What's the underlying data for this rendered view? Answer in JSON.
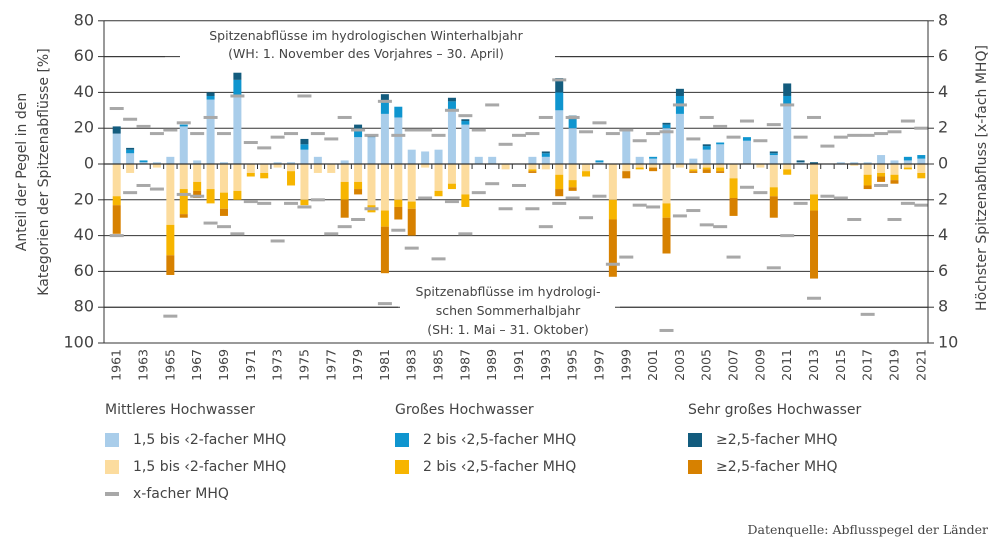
{
  "chart_data": {
    "type": "bar",
    "subtype": "diverging-stacked-bar-with-markers",
    "ylabel_left": "Anteil der Pegel in den Kategorien der Spitzenabflüsse [%]",
    "ylabel_left_lines": [
      "Anteil der Pegel in den",
      "Kategorien der Spitzenabflüsse [%]"
    ],
    "ylabel_right": "Höchster Spitzenabfluss  [x-fach MHQ]",
    "left_axis": {
      "ticks_up": [
        0,
        20,
        40,
        60,
        80
      ],
      "ticks_down": [
        20,
        40,
        60,
        80,
        100
      ],
      "range": [
        -100,
        80
      ]
    },
    "right_axis": {
      "ticks_up": [
        0,
        2,
        4,
        6,
        8
      ],
      "ticks_down": [
        2,
        4,
        6,
        8,
        10
      ],
      "range": [
        -10,
        8
      ]
    },
    "annotations": {
      "winter": [
        "Spitzenabflüsse im hydrologischen Winterhalbjahr",
        "(WH: 1. November des Vorjahres – 30. April)"
      ],
      "summer": [
        "Spitzenabflüsse im hydrologi-",
        "schen Sommerhalbjahr",
        "(SH: 1. Mai – 31. Oktober)"
      ]
    },
    "x": [
      1961,
      1962,
      1963,
      1964,
      1965,
      1966,
      1967,
      1968,
      1969,
      1970,
      1971,
      1972,
      1973,
      1974,
      1975,
      1976,
      1977,
      1978,
      1979,
      1980,
      1981,
      1982,
      1983,
      1984,
      1985,
      1986,
      1987,
      1988,
      1989,
      1990,
      1991,
      1992,
      1993,
      1994,
      1995,
      1996,
      1997,
      1998,
      1999,
      2000,
      2001,
      2002,
      2003,
      2004,
      2005,
      2006,
      2007,
      2008,
      2009,
      2010,
      2011,
      2012,
      2013,
      2014,
      2015,
      2016,
      2017,
      2018,
      2019,
      2020,
      2021
    ],
    "x_tick_labels": [
      "1961",
      "1963",
      "1965",
      "1967",
      "1969",
      "1971",
      "1973",
      "1975",
      "1977",
      "1979",
      "1981",
      "1983",
      "1985",
      "1987",
      "1989",
      "1991",
      "1993",
      "1995",
      "1997",
      "1999",
      "2001",
      "2003",
      "2005",
      "2007",
      "2009",
      "2011",
      "2013",
      "2015",
      "2017",
      "2019",
      "2021"
    ],
    "colors": {
      "winter_mittel": "#a9cdea",
      "winter_gross": "#0f95cf",
      "winter_sehr": "#135c7e",
      "summer_mittel": "#fcdc9e",
      "summer_gross": "#f7b500",
      "summer_sehr": "#d78100",
      "marker": "#a8a8a8",
      "grid": "#333333"
    },
    "series": [
      {
        "name": "WH 1,5 bis <2-facher MHQ",
        "season": "winter",
        "values": [
          17,
          6,
          1,
          1,
          4,
          21,
          2,
          36,
          1,
          38,
          0,
          0,
          1,
          1,
          8,
          4,
          0,
          2,
          15,
          15,
          28,
          26,
          8,
          7,
          8,
          30,
          22,
          4,
          4,
          0,
          0,
          4,
          4,
          30,
          20,
          0,
          1,
          0,
          19,
          4,
          3,
          20,
          28,
          3,
          8,
          11,
          0,
          13,
          0,
          5,
          33,
          1,
          0,
          0,
          1,
          1,
          1,
          5,
          2,
          2,
          3
        ]
      },
      {
        "name": "WH 2 bis <2,5-facher MHQ",
        "season": "winter",
        "values": [
          0,
          2,
          1,
          0,
          0,
          1,
          0,
          2,
          0,
          9,
          0,
          0,
          0,
          0,
          3,
          0,
          0,
          0,
          5,
          0,
          7,
          6,
          0,
          0,
          0,
          5,
          2,
          0,
          0,
          0,
          0,
          0,
          2,
          10,
          5,
          0,
          1,
          0,
          0,
          0,
          1,
          2,
          10,
          0,
          2,
          1,
          0,
          2,
          0,
          1,
          5,
          0,
          0,
          0,
          0,
          0,
          0,
          0,
          0,
          2,
          2
        ]
      },
      {
        "name": "WH ≥2,5-facher MHQ",
        "season": "winter",
        "values": [
          4,
          1,
          0,
          0,
          0,
          0,
          0,
          2,
          0,
          4,
          0,
          0,
          0,
          0,
          3,
          0,
          0,
          0,
          2,
          1,
          4,
          0,
          0,
          0,
          0,
          2,
          1,
          0,
          0,
          0,
          0,
          0,
          1,
          8,
          2,
          0,
          0,
          0,
          0,
          0,
          0,
          1,
          4,
          0,
          1,
          0,
          0,
          0,
          0,
          1,
          7,
          1,
          1,
          0,
          0,
          0,
          0,
          0,
          0,
          0,
          0
        ]
      },
      {
        "name": "SH 1,5 bis <2-facher MHQ",
        "season": "summer",
        "values": [
          18,
          5,
          0,
          2,
          34,
          14,
          10,
          14,
          16,
          15,
          5,
          5,
          2,
          4,
          20,
          5,
          5,
          10,
          10,
          23,
          26,
          20,
          21,
          2,
          15,
          11,
          17,
          0,
          0,
          3,
          0,
          3,
          3,
          6,
          9,
          4,
          0,
          20,
          4,
          2,
          2,
          22,
          2,
          3,
          2,
          2,
          8,
          0,
          2,
          13,
          3,
          0,
          17,
          0,
          0,
          1,
          6,
          5,
          6,
          2,
          5
        ]
      },
      {
        "name": "SH 2 bis <2,5-facher MHQ",
        "season": "summer",
        "values": [
          5,
          0,
          0,
          0,
          17,
          14,
          5,
          8,
          9,
          5,
          2,
          3,
          0,
          8,
          3,
          0,
          0,
          10,
          4,
          4,
          9,
          4,
          4,
          0,
          3,
          3,
          7,
          0,
          0,
          0,
          0,
          1,
          0,
          8,
          4,
          3,
          0,
          11,
          0,
          1,
          0,
          8,
          0,
          1,
          1,
          2,
          11,
          0,
          0,
          5,
          3,
          0,
          9,
          0,
          0,
          0,
          6,
          2,
          3,
          1,
          3
        ]
      },
      {
        "name": "SH ≥2,5-facher MHQ",
        "season": "summer",
        "values": [
          16,
          0,
          0,
          0,
          11,
          2,
          4,
          0,
          4,
          0,
          0,
          0,
          0,
          0,
          0,
          0,
          0,
          10,
          3,
          0,
          26,
          7,
          15,
          0,
          0,
          0,
          0,
          0,
          0,
          0,
          0,
          1,
          0,
          4,
          2,
          0,
          0,
          32,
          4,
          0,
          2,
          20,
          0,
          1,
          2,
          1,
          10,
          0,
          0,
          12,
          0,
          0,
          38,
          0,
          0,
          0,
          2,
          3,
          2,
          0,
          0
        ]
      },
      {
        "name": "WH x-facher MHQ",
        "season": "winter",
        "marker": true,
        "values": [
          3.1,
          2.5,
          2.1,
          1.7,
          1.9,
          2.3,
          1.7,
          2.6,
          1.7,
          3.8,
          1.2,
          0.9,
          1.5,
          1.7,
          3.8,
          1.7,
          1.4,
          2.6,
          1.9,
          1.6,
          3.5,
          1.6,
          1.9,
          1.9,
          1.6,
          3.0,
          2.7,
          1.9,
          3.3,
          1.1,
          1.6,
          1.7,
          2.6,
          4.7,
          2.6,
          1.8,
          2.3,
          1.7,
          1.9,
          1.3,
          1.7,
          1.8,
          3.3,
          1.4,
          2.6,
          2.1,
          1.5,
          2.4,
          1.3,
          2.2,
          3.3,
          1.5,
          2.6,
          1.0,
          1.5,
          1.6,
          1.6,
          1.7,
          1.8,
          2.4,
          2.0
        ]
      },
      {
        "name": "SH x-facher MHQ",
        "season": "summer",
        "marker": true,
        "values": [
          4.0,
          1.6,
          1.2,
          1.4,
          8.5,
          1.7,
          1.8,
          3.3,
          3.5,
          3.9,
          2.1,
          2.2,
          4.3,
          2.2,
          2.4,
          2.0,
          3.9,
          3.5,
          3.1,
          2.5,
          7.8,
          3.7,
          4.7,
          1.9,
          5.3,
          2.1,
          3.9,
          1.6,
          1.1,
          2.5,
          1.2,
          2.5,
          3.5,
          2.2,
          1.9,
          3.0,
          1.8,
          5.6,
          5.2,
          2.3,
          2.4,
          9.3,
          2.9,
          2.6,
          3.4,
          3.5,
          5.2,
          1.3,
          1.6,
          5.8,
          4.0,
          2.2,
          7.5,
          1.8,
          1.9,
          3.1,
          8.4,
          1.2,
          3.1,
          2.2,
          2.3
        ]
      }
    ],
    "legend": {
      "groups": [
        {
          "title": "Mittleres Hochwasser",
          "items": [
            {
              "label": "1,5 bis ‹2-facher MHQ",
              "color_key": "winter_mittel"
            },
            {
              "label": "1,5 bis ‹2-facher MHQ",
              "color_key": "summer_mittel"
            },
            {
              "label": "x-facher MHQ",
              "color_key": "marker",
              "kind": "dash"
            }
          ]
        },
        {
          "title": "Großes Hochwasser",
          "items": [
            {
              "label": "2 bis ‹2,5-facher MHQ",
              "color_key": "winter_gross"
            },
            {
              "label": "2 bis ‹2,5-facher MHQ",
              "color_key": "summer_gross"
            }
          ]
        },
        {
          "title": "Sehr großes Hochwasser",
          "items": [
            {
              "label": "≥2,5-facher MHQ",
              "color_key": "winter_sehr"
            },
            {
              "label": "≥2,5-facher MHQ",
              "color_key": "summer_sehr"
            }
          ]
        }
      ],
      "placement": "bottom"
    },
    "grid": true
  },
  "source": "Datenquelle: Abflusspegel der Länder"
}
